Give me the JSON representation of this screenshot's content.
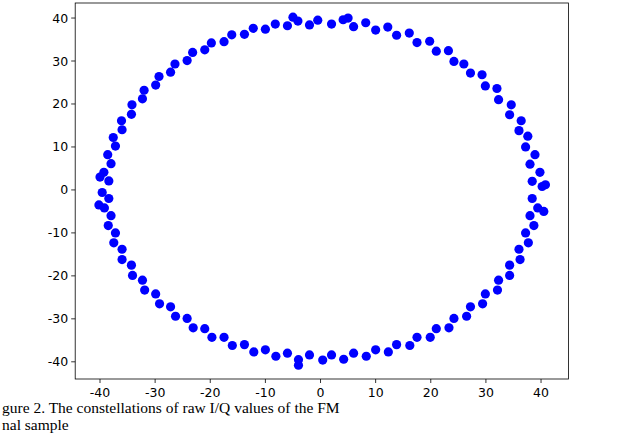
{
  "chart_data": {
    "type": "scatter",
    "caption": [
      "gure 2. The constellations of raw I/Q values of the FM",
      "nal sample"
    ],
    "color": "#0000ff",
    "marker": "circle",
    "grid": false,
    "xlim": [
      -44.5,
      45
    ],
    "ylim": [
      -44,
      43.5
    ],
    "xticks": [
      -40,
      -30,
      -20,
      -10,
      0,
      10,
      20,
      30,
      40
    ],
    "yticks": [
      -40,
      -30,
      -20,
      -10,
      0,
      10,
      20,
      30,
      40
    ],
    "x": [
      40.2,
      38.4,
      39.8,
      38.0,
      38.9,
      37.2,
      37.6,
      36.0,
      36.4,
      34.3,
      34.6,
      32.3,
      32.0,
      29.9,
      29.3,
      27.2,
      26.0,
      24.2,
      23.2,
      21.0,
      19.8,
      17.5,
      16.1,
      13.8,
      12.2,
      10.0,
      8.2,
      6.0,
      4.1,
      2.0,
      -0.5,
      -2.0,
      -4.1,
      -6.0,
      -8.2,
      -10.0,
      -12.2,
      -13.8,
      -16.1,
      -17.5,
      -19.8,
      -21.0,
      -23.2,
      -24.2,
      -26.4,
      -27.2,
      -29.3,
      -29.9,
      -32.0,
      -32.3,
      -34.2,
      -34.3,
      -36.1,
      -36.0,
      -37.6,
      -37.2,
      -38.6,
      -38.0,
      -39.3,
      -38.4,
      -39.6,
      -38.4,
      -39.2,
      -38.0,
      -38.5,
      -37.2,
      -37.5,
      -36.0,
      -36.0,
      -34.3,
      -34.1,
      -32.3,
      -31.9,
      -29.9,
      -29.2,
      -27.2,
      -26.3,
      -24.2,
      -23.1,
      -21.0,
      -19.7,
      -17.5,
      -16.0,
      -13.8,
      -12.1,
      -10.0,
      -8.1,
      -6.0,
      -4.0,
      -2.0,
      0.4,
      2.0,
      4.2,
      6.0,
      8.3,
      10.0,
      12.3,
      13.8,
      16.2,
      17.5,
      19.9,
      21.0,
      23.3,
      24.2,
      26.5,
      27.2,
      29.4,
      29.9,
      32.1,
      32.3,
      34.3,
      34.3,
      36.2,
      36.0,
      37.7,
      37.2,
      38.7,
      38.0,
      39.4,
      38.4,
      -40.0,
      -40.2,
      40.8,
      40.5,
      -4.0,
      5.0,
      -5.0
    ],
    "values": [
      0.8,
      2.0,
      4.1,
      6.0,
      8.2,
      10.0,
      12.5,
      13.8,
      16.1,
      17.5,
      19.8,
      21.0,
      23.6,
      24.2,
      26.8,
      27.2,
      29.3,
      29.9,
      32.4,
      32.3,
      34.6,
      34.3,
      36.5,
      36.0,
      37.9,
      37.2,
      38.9,
      38.0,
      39.6,
      38.6,
      39.5,
      38.4,
      39.3,
      38.2,
      38.6,
      37.4,
      37.6,
      36.2,
      36.1,
      34.5,
      34.2,
      32.6,
      32.0,
      30.1,
      29.3,
      27.4,
      26.4,
      24.4,
      23.2,
      21.2,
      19.8,
      17.6,
      16.1,
      14.0,
      12.2,
      10.2,
      8.2,
      6.1,
      4.1,
      2.1,
      -0.6,
      -2.0,
      -4.2,
      -6.0,
      -8.3,
      -10.0,
      -12.3,
      -13.8,
      -16.2,
      -17.5,
      -19.9,
      -21.0,
      -23.3,
      -24.2,
      -26.5,
      -27.2,
      -29.4,
      -29.9,
      -32.1,
      -32.3,
      -34.3,
      -34.3,
      -36.2,
      -36.0,
      -37.7,
      -37.2,
      -38.7,
      -38.0,
      -39.5,
      -38.4,
      -39.6,
      -38.4,
      -39.4,
      -38.0,
      -38.7,
      -37.2,
      -37.7,
      -36.0,
      -36.2,
      -34.3,
      -34.3,
      -32.3,
      -32.1,
      -29.9,
      -29.4,
      -27.2,
      -26.5,
      -24.2,
      -23.3,
      -21.0,
      -19.9,
      -17.5,
      -16.2,
      -13.8,
      -12.3,
      -10.0,
      -8.3,
      -6.0,
      -4.2,
      -2.0,
      3.0,
      -3.5,
      1.2,
      -5.0,
      -40.8,
      40.0,
      40.2
    ]
  }
}
